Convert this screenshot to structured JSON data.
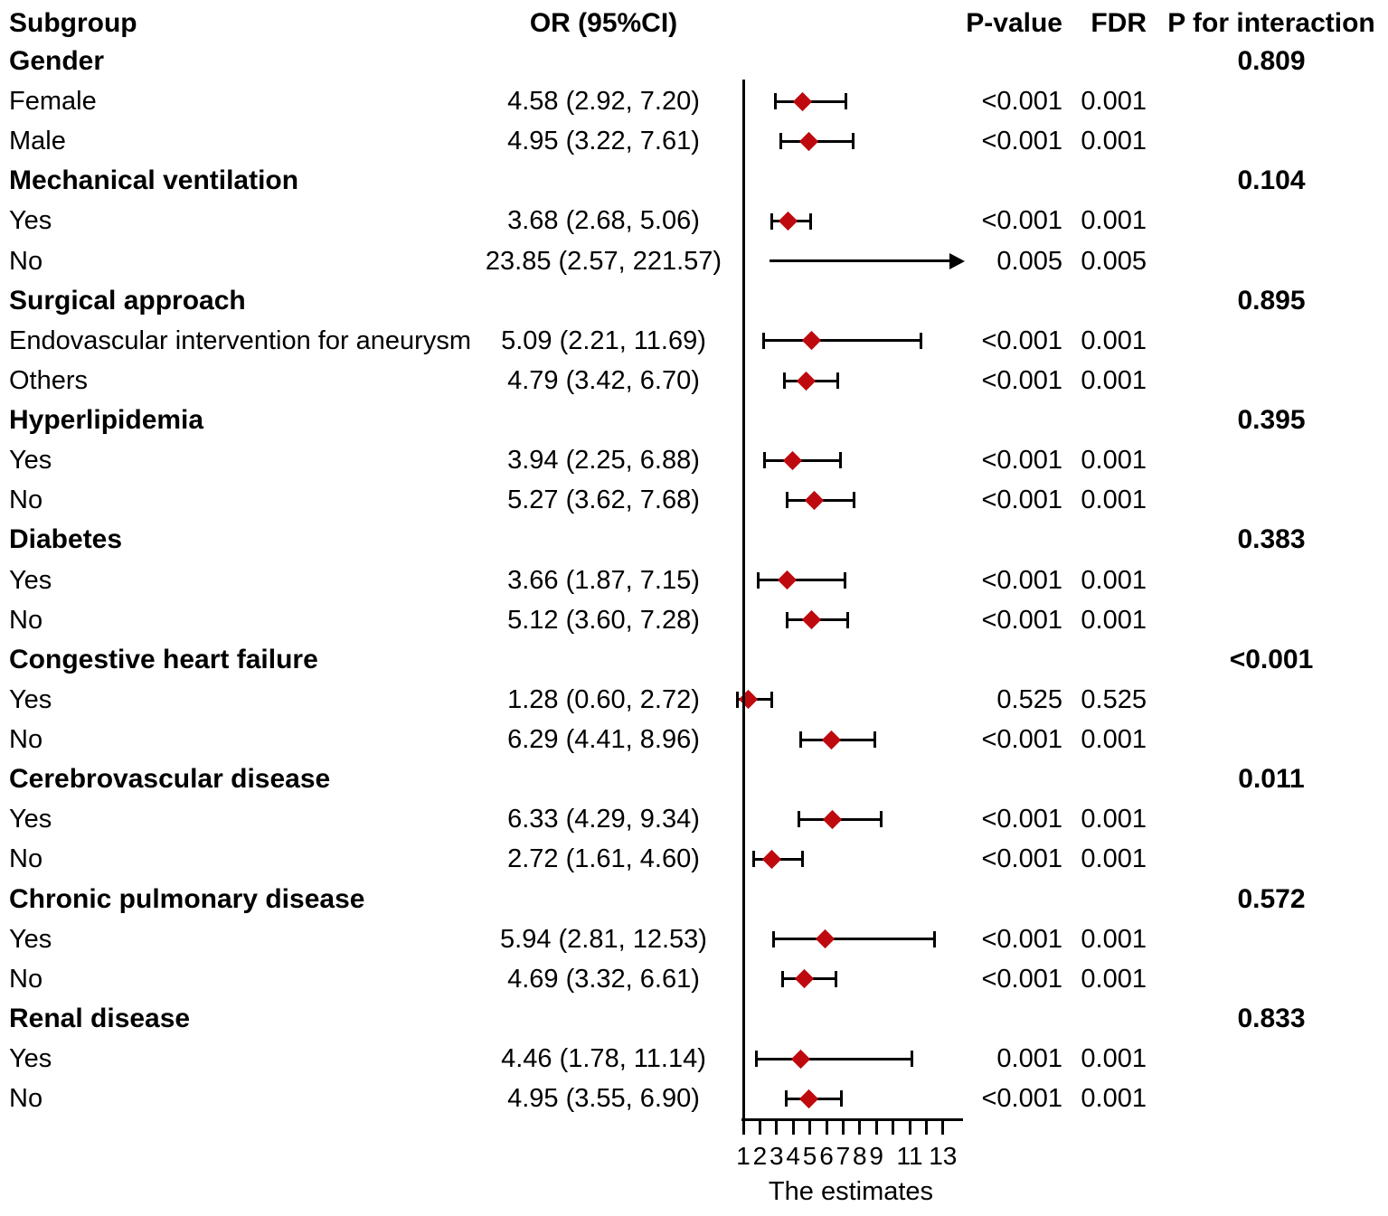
{
  "chart_data": {
    "type": "forest",
    "xlabel": "The estimates",
    "columns": [
      "Subgroup",
      "OR (95%CI)",
      "P-value",
      "FDR",
      "P for interaction"
    ],
    "axis": {
      "min": 1,
      "max": 13,
      "ref_line": 1,
      "ticks": [
        1,
        2,
        3,
        4,
        5,
        6,
        7,
        8,
        9,
        10,
        11,
        12,
        13
      ],
      "tick_labels": [
        "1",
        "2",
        "3",
        "4",
        "5",
        "6",
        "7",
        "8",
        "9",
        "11",
        "13"
      ],
      "tick_label_values": [
        1,
        2,
        3,
        4,
        5,
        6,
        7,
        8,
        9,
        11,
        13
      ]
    },
    "marker_color": "#be0a0f",
    "rows": [
      {
        "type": "group",
        "label": "Gender",
        "p_interaction": "0.809"
      },
      {
        "type": "item",
        "label": "Female",
        "or_text": "4.58 (2.92, 7.20)",
        "or": 4.58,
        "lo": 2.92,
        "hi": 7.2,
        "p": "<0.001",
        "fdr": "0.001"
      },
      {
        "type": "item",
        "label": "Male",
        "or_text": "4.95 (3.22, 7.61)",
        "or": 4.95,
        "lo": 3.22,
        "hi": 7.61,
        "p": "<0.001",
        "fdr": "0.001"
      },
      {
        "type": "group",
        "label": "Mechanical ventilation",
        "p_interaction": "0.104"
      },
      {
        "type": "item",
        "label": "Yes",
        "or_text": "3.68 (2.68, 5.06)",
        "or": 3.68,
        "lo": 2.68,
        "hi": 5.06,
        "p": "<0.001",
        "fdr": "0.001"
      },
      {
        "type": "item",
        "label": "No",
        "or_text": "23.85 (2.57, 221.57)",
        "or": 23.85,
        "lo": 2.57,
        "hi": 221.57,
        "p": "0.005",
        "fdr": "0.005",
        "arrow": true
      },
      {
        "type": "group",
        "label": "Surgical approach",
        "p_interaction": "0.895"
      },
      {
        "type": "item",
        "label": "Endovascular intervention for aneurysm",
        "or_text": "5.09 (2.21, 11.69)",
        "or": 5.09,
        "lo": 2.21,
        "hi": 11.69,
        "p": "<0.001",
        "fdr": "0.001"
      },
      {
        "type": "item",
        "label": "Others",
        "or_text": "4.79 (3.42, 6.70)",
        "or": 4.79,
        "lo": 3.42,
        "hi": 6.7,
        "p": "<0.001",
        "fdr": "0.001"
      },
      {
        "type": "group",
        "label": "Hyperlipidemia",
        "p_interaction": "0.395"
      },
      {
        "type": "item",
        "label": "Yes",
        "or_text": "3.94 (2.25, 6.88)",
        "or": 3.94,
        "lo": 2.25,
        "hi": 6.88,
        "p": "<0.001",
        "fdr": "0.001"
      },
      {
        "type": "item",
        "label": "No",
        "or_text": "5.27 (3.62, 7.68)",
        "or": 5.27,
        "lo": 3.62,
        "hi": 7.68,
        "p": "<0.001",
        "fdr": "0.001"
      },
      {
        "type": "group",
        "label": "Diabetes",
        "p_interaction": "0.383"
      },
      {
        "type": "item",
        "label": "Yes",
        "or_text": "3.66 (1.87, 7.15)",
        "or": 3.66,
        "lo": 1.87,
        "hi": 7.15,
        "p": "<0.001",
        "fdr": "0.001"
      },
      {
        "type": "item",
        "label": "No",
        "or_text": "5.12 (3.60, 7.28)",
        "or": 5.12,
        "lo": 3.6,
        "hi": 7.28,
        "p": "<0.001",
        "fdr": "0.001"
      },
      {
        "type": "group",
        "label": "Congestive heart failure",
        "p_interaction": "<0.001"
      },
      {
        "type": "item",
        "label": "Yes",
        "or_text": "1.28 (0.60, 2.72)",
        "or": 1.28,
        "lo": 0.6,
        "hi": 2.72,
        "p": "0.525",
        "fdr": "0.525"
      },
      {
        "type": "item",
        "label": "No",
        "or_text": "6.29 (4.41, 8.96)",
        "or": 6.29,
        "lo": 4.41,
        "hi": 8.96,
        "p": "<0.001",
        "fdr": "0.001"
      },
      {
        "type": "group",
        "label": "Cerebrovascular disease",
        "p_interaction": "0.011"
      },
      {
        "type": "item",
        "label": "Yes",
        "or_text": "6.33 (4.29, 9.34)",
        "or": 6.33,
        "lo": 4.29,
        "hi": 9.34,
        "p": "<0.001",
        "fdr": "0.001"
      },
      {
        "type": "item",
        "label": "No",
        "or_text": "2.72 (1.61, 4.60)",
        "or": 2.72,
        "lo": 1.61,
        "hi": 4.6,
        "p": "<0.001",
        "fdr": "0.001"
      },
      {
        "type": "group",
        "label": "Chronic pulmonary disease",
        "p_interaction": "0.572"
      },
      {
        "type": "item",
        "label": "Yes",
        "or_text": "5.94 (2.81, 12.53)",
        "or": 5.94,
        "lo": 2.81,
        "hi": 12.53,
        "p": "<0.001",
        "fdr": "0.001"
      },
      {
        "type": "item",
        "label": "No",
        "or_text": "4.69 (3.32, 6.61)",
        "or": 4.69,
        "lo": 3.32,
        "hi": 6.61,
        "p": "<0.001",
        "fdr": "0.001"
      },
      {
        "type": "group",
        "label": "Renal disease",
        "p_interaction": "0.833"
      },
      {
        "type": "item",
        "label": "Yes",
        "or_text": "4.46 (1.78, 11.14)",
        "or": 4.46,
        "lo": 1.78,
        "hi": 11.14,
        "p": "0.001",
        "fdr": "0.001"
      },
      {
        "type": "item",
        "label": "No",
        "or_text": "4.95 (3.55, 6.90)",
        "or": 4.95,
        "lo": 3.55,
        "hi": 6.9,
        "p": "<0.001",
        "fdr": "0.001"
      }
    ]
  }
}
